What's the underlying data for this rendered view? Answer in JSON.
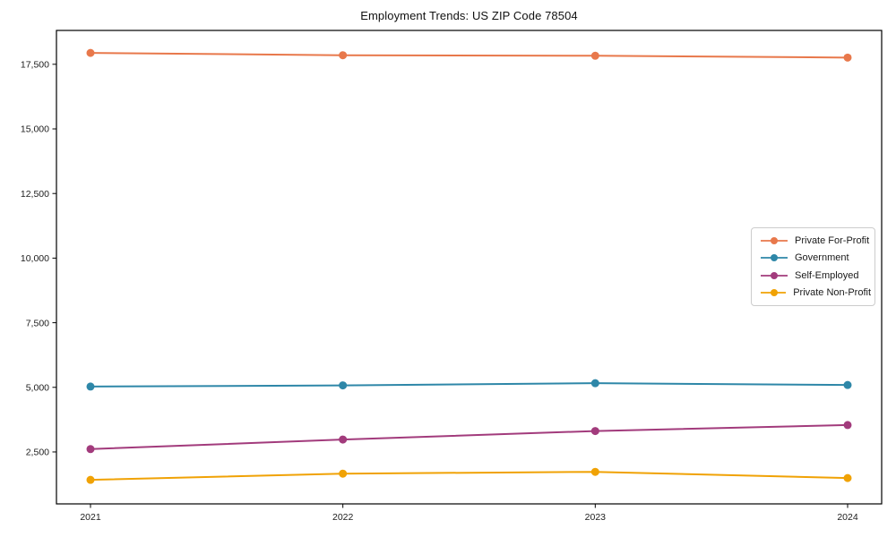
{
  "title": "Employment Trends: US ZIP Code 78504",
  "chart_data": {
    "type": "line",
    "title": "Employment Trends: US ZIP Code 78504",
    "xlabel": "",
    "ylabel": "",
    "categories": [
      "2021",
      "2022",
      "2023",
      "2024"
    ],
    "series": [
      {
        "name": "Private For-Profit",
        "color": "#e8784b",
        "values": [
          17940,
          17850,
          17830,
          17760
        ]
      },
      {
        "name": "Government",
        "color": "#2e87a8",
        "values": [
          5030,
          5075,
          5160,
          5090
        ]
      },
      {
        "name": "Self-Employed",
        "color": "#a23b7c",
        "values": [
          2610,
          2980,
          3310,
          3540
        ]
      },
      {
        "name": "Private Non-Profit",
        "color": "#f0a205",
        "values": [
          1420,
          1660,
          1730,
          1490
        ]
      }
    ],
    "y_ticks": [
      {
        "value": 2500,
        "label": "2,500"
      },
      {
        "value": 5000,
        "label": "5,000"
      },
      {
        "value": 7500,
        "label": "7,500"
      },
      {
        "value": 10000,
        "label": "10,000"
      },
      {
        "value": 12500,
        "label": "12,500"
      },
      {
        "value": 15000,
        "label": "15,000"
      },
      {
        "value": 17500,
        "label": "17,500"
      }
    ],
    "ylim": [
      490,
      18810
    ],
    "grid": false,
    "legend_position": "center right",
    "marker": "circle"
  }
}
